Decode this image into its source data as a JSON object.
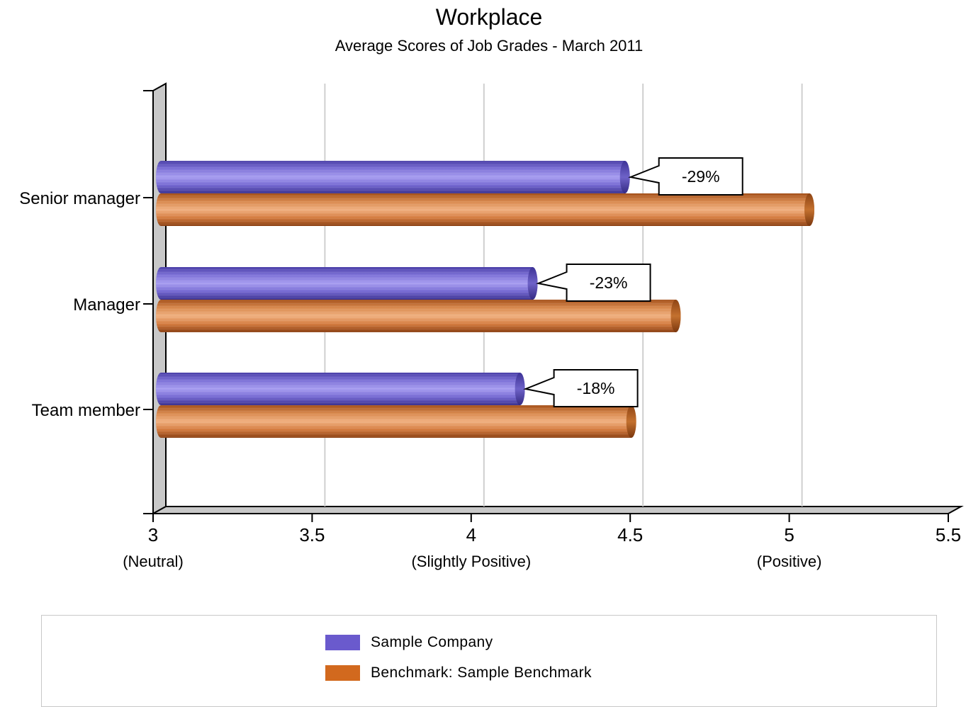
{
  "chart_data": {
    "type": "bar",
    "orientation": "horizontal",
    "title": "Workplace",
    "subtitle": "Average Scores of Job Grades - March 2011",
    "categories": [
      "Senior manager",
      "Manager",
      "Team member"
    ],
    "series": [
      {
        "name": "Sample Company",
        "color": "#6a5acd",
        "values": [
          4.49,
          4.2,
          4.16
        ]
      },
      {
        "name": "Benchmark: Sample Benchmark",
        "color": "#d2691e",
        "values": [
          5.07,
          4.65,
          4.51
        ]
      }
    ],
    "callouts": [
      "-29%",
      "-23%",
      "-18%"
    ],
    "xlim": [
      3,
      5.5
    ],
    "xticks": [
      {
        "value": 3,
        "label": "3",
        "sublabel": "(Neutral)"
      },
      {
        "value": 3.5,
        "label": "3.5",
        "sublabel": ""
      },
      {
        "value": 4,
        "label": "4",
        "sublabel": "(Slightly Positive)"
      },
      {
        "value": 4.5,
        "label": "4.5",
        "sublabel": ""
      },
      {
        "value": 5,
        "label": "5",
        "sublabel": "(Positive)"
      },
      {
        "value": 5.5,
        "label": "5.5",
        "sublabel": ""
      }
    ],
    "grid": true,
    "legend_position": "bottom",
    "style": "3d-cylinder"
  }
}
